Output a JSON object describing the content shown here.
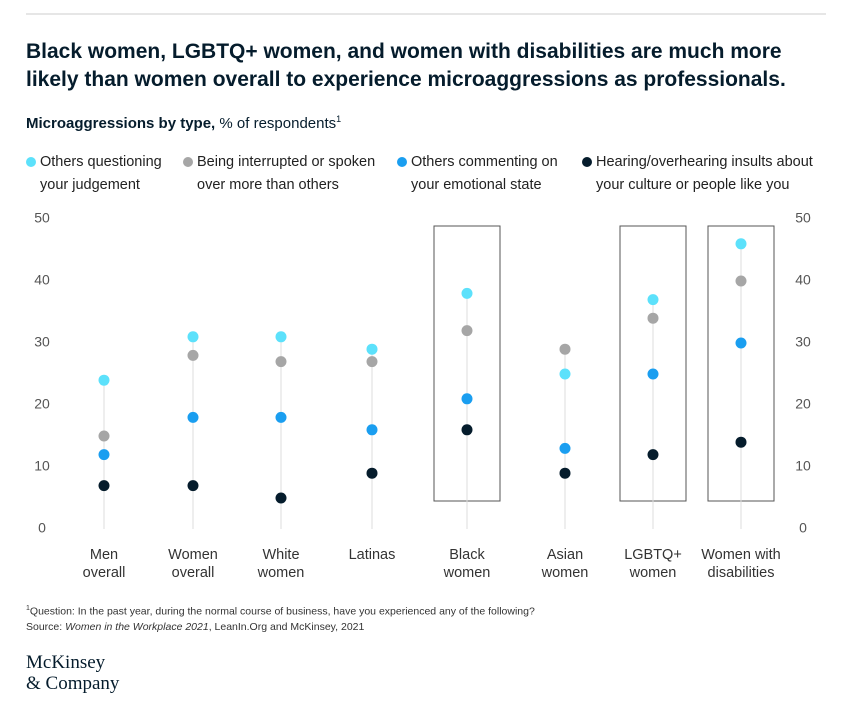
{
  "title": "Black women, LGBTQ+ women, and women with disabilities are much more likely than women overall to experience microaggressions as professionals.",
  "chart_data": {
    "type": "dot",
    "subtitle": {
      "bold": "Microaggressions by type,",
      "text": " % of respondents",
      "note": "1"
    },
    "categories": [
      [
        "Men",
        "overall"
      ],
      [
        "Women",
        "overall"
      ],
      [
        "White",
        "women"
      ],
      [
        "Latinas"
      ],
      [
        "Black",
        "women"
      ],
      [
        "Asian",
        "women"
      ],
      [
        "LGBTQ+",
        "women"
      ],
      [
        "Women with",
        "disabilities"
      ]
    ],
    "highlight": [
      4,
      6,
      7
    ],
    "series": [
      {
        "name": "Others questioning your judgement",
        "color": "#5ce1fb",
        "values": [
          24,
          31,
          31,
          29,
          38,
          25,
          37,
          46
        ]
      },
      {
        "name": "Being interrupted or spoken over more than others",
        "color": "#a6a6a6",
        "values": [
          15,
          28,
          27,
          27,
          32,
          29,
          34,
          40
        ]
      },
      {
        "name": "Others commenting on your emotional state",
        "color": "#1a9ef0",
        "values": [
          12,
          18,
          18,
          16,
          21,
          13,
          25,
          30
        ]
      },
      {
        "name": "Hearing/overhearing insults about your culture or people like you",
        "color": "#051c2c",
        "values": [
          7,
          7,
          5,
          9,
          16,
          9,
          12,
          14
        ]
      }
    ],
    "ylim": [
      0,
      50
    ],
    "yticks": [
      0,
      10,
      20,
      30,
      40,
      50
    ]
  },
  "footnote": {
    "mark": "1",
    "text": "Question: In the past year, during the normal course of business, have you experienced any of the following?"
  },
  "source": {
    "prefix": "Source: ",
    "italic": "Women in the Workplace 2021",
    "suffix": ", LeanIn.Org and McKinsey, 2021"
  },
  "logo": [
    "McKinsey",
    "& Company"
  ]
}
